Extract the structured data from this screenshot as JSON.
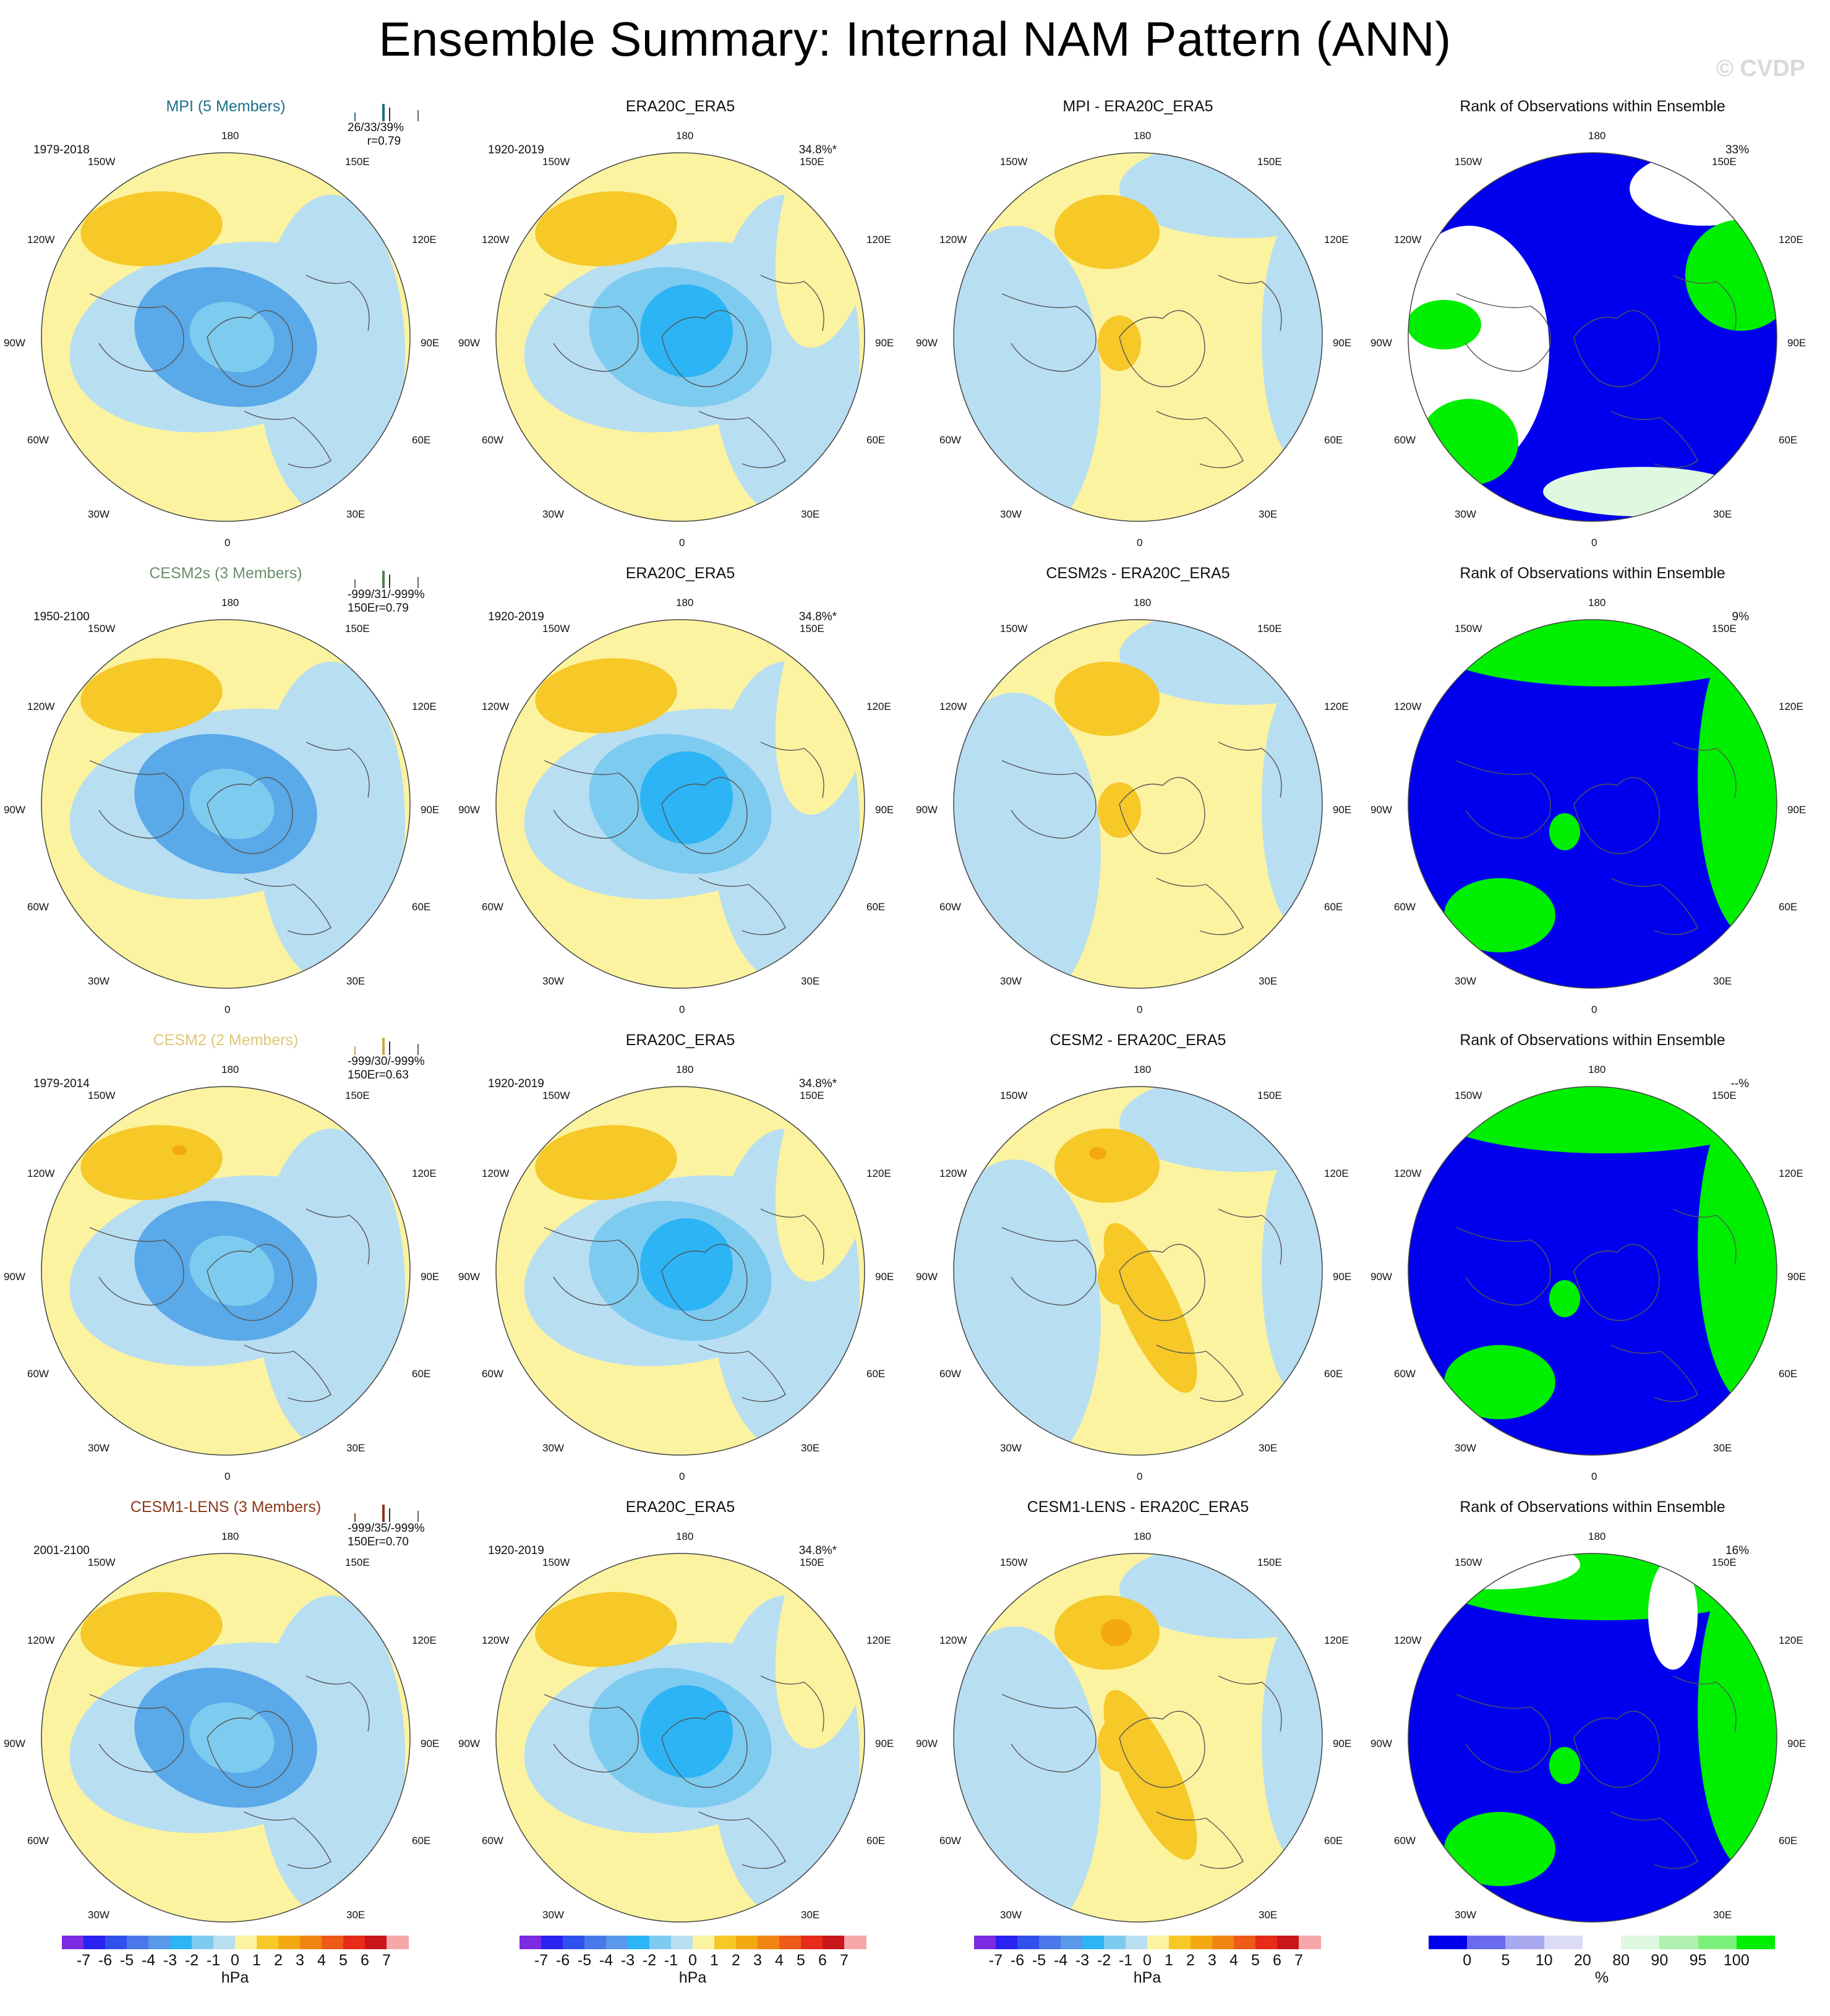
{
  "title": "Ensemble Summary: Internal NAM Pattern (ANN)",
  "copyright": "© CVDP",
  "lon_labels": {
    "top": "180",
    "bottom": "0",
    "ul1": "150W",
    "ur1": "150E",
    "ul2": "120W",
    "ur2": "120E",
    "l": "90W",
    "r": "90E",
    "ll2": "60W",
    "lr2": "60E",
    "ll1": "30W",
    "lr1": "30E"
  },
  "rows": [
    {
      "model": "MPI (5 Members)",
      "model_color": "#1f6f8b",
      "period": "1979-2018",
      "stats": "26/33/39%\n      r=0.79",
      "bar_color": "#1f6f8b",
      "obs_title": "ERA20C_ERA5",
      "obs_period": "1920-2019",
      "obs_pct": "34.8%*",
      "diff_title": "MPI - ERA20C_ERA5",
      "rank_title": "Rank of Observations within Ensemble",
      "rank_pct": "33%"
    },
    {
      "model": "CESM2s (3 Members)",
      "model_color": "#6b8e6b",
      "period": "1950-2100",
      "stats": "-999/31/-999%\n150Er=0.79",
      "bar_color": "#4f7f4f",
      "obs_title": "ERA20C_ERA5",
      "obs_period": "1920-2019",
      "obs_pct": "34.8%*",
      "diff_title": "CESM2s - ERA20C_ERA5",
      "rank_title": "Rank of Observations within Ensemble",
      "rank_pct": "9%"
    },
    {
      "model": "CESM2 (2 Members)",
      "model_color": "#e0c77a",
      "period": "1979-2014",
      "stats": "-999/30/-999%\n150Er=0.63",
      "bar_color": "#c9a94a",
      "obs_title": "ERA20C_ERA5",
      "obs_period": "1920-2019",
      "obs_pct": "34.8%*",
      "diff_title": "CESM2 - ERA20C_ERA5",
      "rank_title": "Rank of Observations within Ensemble",
      "rank_pct": "--%"
    },
    {
      "model": "CESM1-LENS (3 Members)",
      "model_color": "#8b3a1a",
      "period": "2001-2100",
      "stats": "-999/35/-999%\n150Er=0.70",
      "bar_color": "#8b3a1a",
      "obs_title": "ERA20C_ERA5",
      "obs_period": "1920-2019",
      "obs_pct": "34.8%*",
      "diff_title": "CESM1-LENS - ERA20C_ERA5",
      "rank_title": "Rank of Observations within Ensemble",
      "rank_pct": "16%"
    }
  ],
  "hpa_colorbar": {
    "unit": "hPa",
    "ticks": [
      "-7",
      "-6",
      "-5",
      "-4",
      "-3",
      "-2",
      "-1",
      "0",
      "1",
      "2",
      "3",
      "4",
      "5",
      "6",
      "7"
    ],
    "colors": [
      "#7b2be0",
      "#2a22f0",
      "#3050ee",
      "#4a78ea",
      "#5a98ea",
      "#2cb4f5",
      "#7ecbf0",
      "#b8def2",
      "#fbf3a0",
      "#f6c828",
      "#f4a912",
      "#f08512",
      "#ee5a18",
      "#e62b1a",
      "#c8161a",
      "#f7a7a7"
    ]
  },
  "rank_colorbar": {
    "unit": "%",
    "ticks": [
      "0",
      "5",
      "10",
      "20",
      "80",
      "90",
      "95",
      "100"
    ],
    "colors": [
      "#0000ee",
      "#6a6aee",
      "#a9a9f0",
      "#dcdcf7",
      "#ffffff",
      "#dff8df",
      "#b0f0b0",
      "#7cf07c",
      "#00ee00"
    ]
  }
}
